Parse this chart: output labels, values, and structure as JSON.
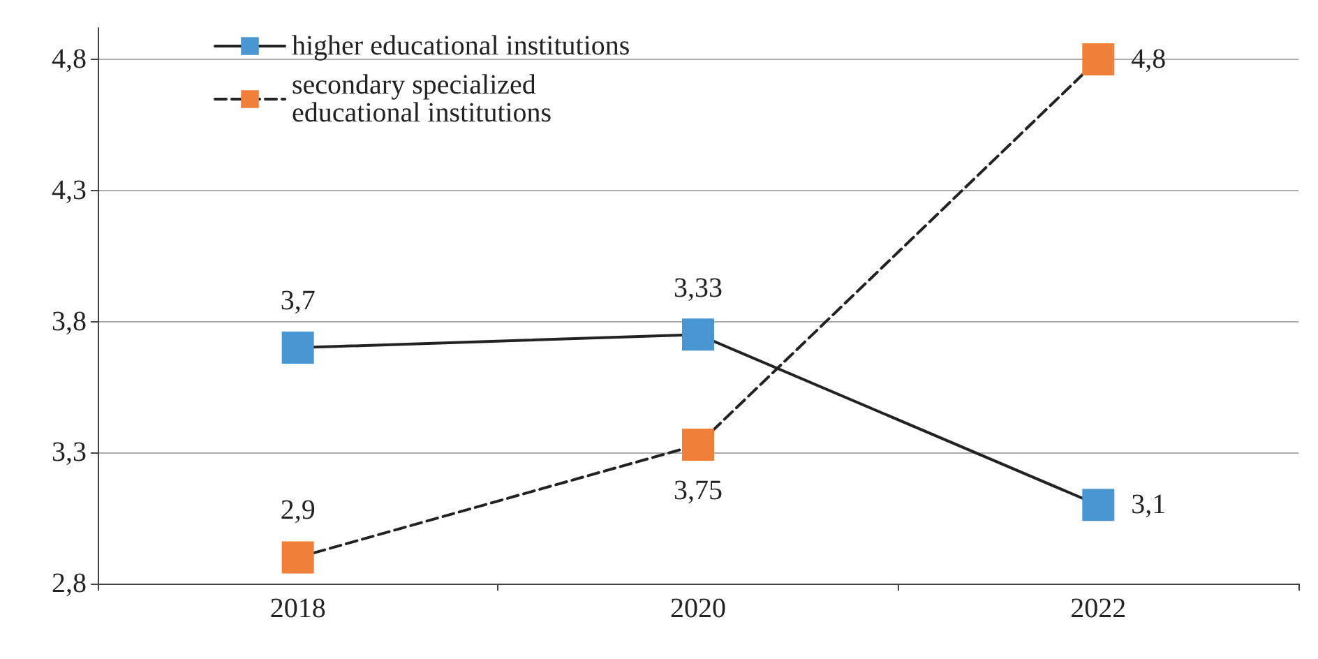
{
  "chart_data": {
    "type": "line",
    "categories": [
      "2018",
      "2020",
      "2022"
    ],
    "series": [
      {
        "name": "higher educational institutions",
        "color": "#4a96d2",
        "values": [
          3.7,
          3.75,
          3.1
        ],
        "value_labels": [
          "3,7",
          null,
          "3,1"
        ],
        "line_style": "solid"
      },
      {
        "name": "secondary specialized\neducational institutions",
        "color": "#f07f3a",
        "values": [
          2.9,
          3.33,
          4.8
        ],
        "value_labels": [
          "2,9",
          null,
          "4,8"
        ],
        "line_style": "dashed"
      }
    ],
    "ylim": [
      2.8,
      4.92
    ],
    "yticks": [
      {
        "value": 2.8,
        "label": "2,8"
      },
      {
        "value": 3.3,
        "label": "3,3"
      },
      {
        "value": 3.8,
        "label": "3,8"
      },
      {
        "value": 4.3,
        "label": "4,3"
      },
      {
        "value": 4.8,
        "label": "4,8"
      }
    ],
    "annotations": [
      "3,33",
      "3,75"
    ],
    "grid": "y",
    "legend": "top left",
    "marker": "square"
  }
}
